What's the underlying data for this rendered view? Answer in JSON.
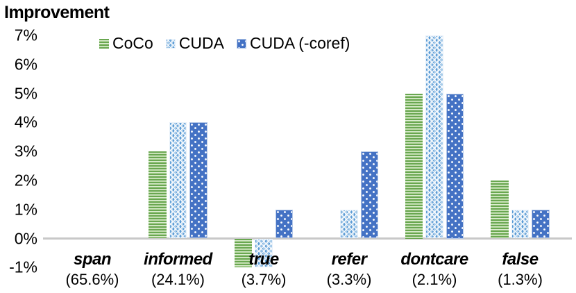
{
  "title": "Improvement",
  "chart_data": {
    "type": "bar",
    "title": "Improvement",
    "categories": [
      "span",
      "informed",
      "true",
      "refer",
      "dontcare",
      "false"
    ],
    "category_sublabels": [
      "(65.6%)",
      "(24.1%)",
      "(3.7%)",
      "(3.3%)",
      "(2.1%)",
      "(1.3%)"
    ],
    "series": [
      {
        "name": "CoCo",
        "values": [
          0,
          3,
          -1,
          0,
          5,
          2
        ]
      },
      {
        "name": "CUDA",
        "values": [
          0,
          4,
          -1,
          1,
          7,
          1
        ]
      },
      {
        "name": "CUDA (-coref)",
        "values": [
          0,
          4,
          1,
          3,
          5,
          1
        ]
      }
    ],
    "y_ticks": [
      "7%",
      "6%",
      "5%",
      "4%",
      "3%",
      "2%",
      "1%",
      "0%",
      "-1%"
    ],
    "y_tick_values": [
      7,
      6,
      5,
      4,
      3,
      2,
      1,
      0,
      -1
    ],
    "ylim": [
      -1,
      7
    ],
    "unit": "%",
    "grid": false,
    "legend_position": "top-inside"
  },
  "colors": {
    "coco_green": "#69a750",
    "coco_green_light": "#dcedd1",
    "cuda_blue": "#8db9e2",
    "cuda_coref_blue": "#4472c4",
    "axis_line": "#c8c8c8",
    "text": "#000000",
    "background": "#ffffff"
  }
}
